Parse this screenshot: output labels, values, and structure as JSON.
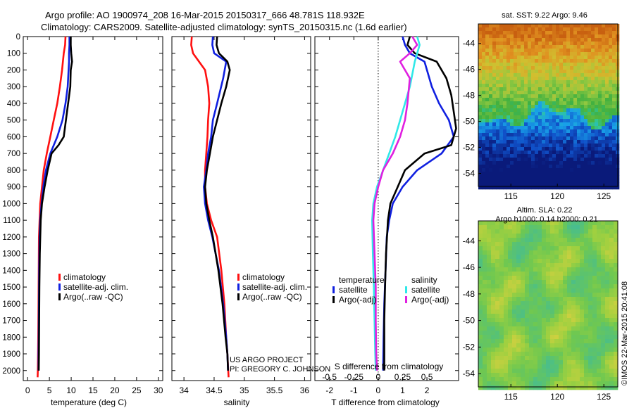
{
  "header": {
    "line1": "Argo profile: AO 1900974_208 16-Mar-2015 20150317_666 48.781S 118.932E",
    "line2": "Climatology: CARS2009. Satellite-adjusted climatology: synTS_20150315.nc (1.6d earlier)"
  },
  "colors": {
    "climatology": "#ff1010",
    "satellite_adj": "#1020e0",
    "argo": "#000000",
    "salinity_sat": "#30e8e8",
    "salinity_argo": "#e020e0"
  },
  "credits": {
    "project": "US ARGO PROJECT",
    "pi": "PI: GREGORY C. JOHNSON",
    "stamp": "©IMOS 22-Mar-2015 20:41:08"
  },
  "chart_data": [
    {
      "type": "line",
      "panel": "temperature",
      "xlabel": "temperature (deg C)",
      "ylabel": "",
      "xlim": [
        -1,
        31
      ],
      "ylim": [
        2060,
        0
      ],
      "y_reversed": true,
      "xticks": [
        0,
        5,
        10,
        15,
        20,
        25,
        30
      ],
      "yticks": [
        0,
        100,
        200,
        300,
        400,
        500,
        600,
        700,
        800,
        900,
        1000,
        1100,
        1200,
        1300,
        1400,
        1500,
        1600,
        1700,
        1800,
        1900,
        2000
      ],
      "legend": [
        "climatology",
        "satellite-adj. clim.",
        "Argo(..raw -QC)"
      ],
      "series": [
        {
          "name": "climatology",
          "color": "#ff1010",
          "x": [
            8.7,
            8.6,
            8.3,
            7.9,
            7.4,
            6.8,
            6.0,
            5.2,
            4.4,
            3.7,
            3.3,
            2.9,
            2.75,
            2.6,
            2.55,
            2.5,
            2.45,
            2.4,
            2.35,
            2.3
          ],
          "y": [
            0,
            50,
            100,
            200,
            300,
            400,
            500,
            600,
            700,
            800,
            900,
            1000,
            1100,
            1200,
            1400,
            1600,
            1800,
            1900,
            2000,
            2040
          ]
        },
        {
          "name": "satellite-adj. clim.",
          "color": "#1020e0",
          "x": [
            9.6,
            9.6,
            9.5,
            9.5,
            9.2,
            8.7,
            8.0,
            6.8,
            5.2,
            4.2,
            3.6,
            3.2,
            2.9,
            2.75,
            2.65,
            2.6,
            2.55,
            2.5,
            2.5
          ],
          "y": [
            0,
            50,
            100,
            150,
            300,
            400,
            500,
            600,
            700,
            800,
            900,
            1000,
            1100,
            1200,
            1400,
            1600,
            1800,
            1900,
            2000
          ]
        },
        {
          "name": "Argo(..raw -QC)",
          "color": "#000000",
          "x": [
            9.9,
            9.9,
            10.0,
            10.2,
            9.9,
            9.8,
            9.3,
            8.8,
            8.3,
            7.1,
            5.5,
            4.6,
            3.9,
            3.3,
            3.0,
            2.8,
            2.7,
            2.65,
            2.6,
            2.55
          ],
          "y": [
            0,
            50,
            100,
            150,
            200,
            300,
            400,
            500,
            600,
            650,
            700,
            800,
            900,
            1000,
            1100,
            1300,
            1500,
            1700,
            1900,
            2000
          ]
        }
      ]
    },
    {
      "type": "line",
      "panel": "salinity",
      "xlabel": "salinity",
      "ylabel": "",
      "xlim": [
        33.8,
        36.1
      ],
      "ylim": [
        2060,
        0
      ],
      "y_reversed": true,
      "xticks": [
        34,
        34.5,
        35,
        35.5,
        36
      ],
      "xtick_labels": [
        "34",
        "34.5",
        "35",
        "35.5",
        "36"
      ],
      "legend": [
        "climatology",
        "satellite-adj. clim.",
        "Argo(..raw -QC)"
      ],
      "series": [
        {
          "name": "climatology",
          "color": "#ff1010",
          "x": [
            34.13,
            34.12,
            34.15,
            34.35,
            34.4,
            34.42,
            34.4,
            34.39,
            34.37,
            34.35,
            34.35,
            34.38,
            34.45,
            34.55,
            34.62,
            34.67,
            34.7,
            34.72,
            34.74
          ],
          "y": [
            0,
            50,
            100,
            200,
            300,
            400,
            500,
            600,
            700,
            800,
            900,
            1000,
            1100,
            1200,
            1400,
            1600,
            1800,
            1900,
            2040
          ]
        },
        {
          "name": "satellite-adj. clim.",
          "color": "#1020e0",
          "x": [
            34.48,
            34.47,
            34.5,
            34.7,
            34.65,
            34.55,
            34.48,
            34.45,
            34.4,
            34.37,
            34.33,
            34.35,
            34.4,
            34.47,
            34.58,
            34.65,
            34.7,
            34.72,
            34.73
          ],
          "y": [
            0,
            50,
            100,
            150,
            250,
            400,
            500,
            600,
            700,
            800,
            900,
            1000,
            1100,
            1200,
            1400,
            1600,
            1800,
            1900,
            2000
          ]
        },
        {
          "name": "Argo(..raw -QC)",
          "color": "#000000",
          "x": [
            34.55,
            34.54,
            34.58,
            34.72,
            34.76,
            34.7,
            34.62,
            34.55,
            34.48,
            34.43,
            34.38,
            34.35,
            34.37,
            34.42,
            34.48,
            34.57,
            34.64,
            34.69,
            34.72,
            34.73
          ],
          "y": [
            0,
            50,
            100,
            150,
            200,
            300,
            400,
            500,
            600,
            700,
            800,
            900,
            1000,
            1100,
            1200,
            1400,
            1600,
            1800,
            1900,
            2000
          ]
        }
      ]
    },
    {
      "type": "line",
      "panel": "difference",
      "xlabel": "T difference from climatology",
      "top_xlabel": "S difference from climatology",
      "xlim": [
        -2.6,
        3.3
      ],
      "ylim": [
        2060,
        0
      ],
      "y_reversed": true,
      "xticks": [
        -2,
        -1,
        0,
        1,
        2
      ],
      "top_xticks": [
        -0.5,
        -0.25,
        0,
        0.25,
        0.5
      ],
      "top_xtick_labels": [
        "-0.5",
        "-0.25",
        "0",
        "0.25",
        "0.5"
      ],
      "top_xtick_positions": [
        -2,
        -1,
        0,
        1,
        2
      ],
      "legend_headers": [
        "temperature",
        "salinity"
      ],
      "legend": [
        "satellite",
        "Argo(-adj)",
        "satellite",
        "Argo(-adj)"
      ],
      "series": [
        {
          "name": "satellite",
          "group": "temperature",
          "color": "#1020e0",
          "x": [
            1.0,
            1.1,
            1.3,
            1.9,
            2.2,
            2.5,
            2.9,
            3.1,
            2.6,
            1.6,
            1.0,
            0.6,
            0.45,
            0.35,
            0.3,
            0.25,
            0.22,
            0.2
          ],
          "y": [
            0,
            50,
            100,
            150,
            300,
            400,
            500,
            600,
            700,
            800,
            900,
            1000,
            1100,
            1200,
            1400,
            1600,
            1800,
            2000
          ]
        },
        {
          "name": "Argo(-adj)",
          "group": "temperature",
          "color": "#000000",
          "x": [
            1.3,
            1.2,
            1.5,
            2.4,
            2.8,
            3.0,
            3.1,
            3.2,
            3.0,
            1.9,
            1.1,
            0.8,
            0.5,
            0.4,
            0.32,
            0.28,
            0.25,
            0.25
          ],
          "y": [
            0,
            50,
            100,
            150,
            250,
            350,
            450,
            550,
            650,
            700,
            800,
            900,
            1000,
            1100,
            1300,
            1500,
            1700,
            2000
          ]
        },
        {
          "name": "satellite",
          "group": "salinity",
          "color": "#30e8e8",
          "x": [
            1.6,
            1.7,
            1.6,
            1.5,
            1.3,
            1.1,
            0.9,
            0.7,
            0.45,
            0.2,
            -0.05,
            -0.2,
            -0.25,
            -0.22,
            -0.18,
            -0.15,
            -0.12,
            -0.1
          ],
          "y": [
            0,
            50,
            100,
            150,
            300,
            400,
            500,
            600,
            700,
            800,
            900,
            1000,
            1100,
            1300,
            1500,
            1700,
            1900,
            2000
          ]
        },
        {
          "name": "Argo(-adj)",
          "group": "salinity",
          "color": "#e020e0",
          "x": [
            1.4,
            1.6,
            1.3,
            0.9,
            1.3,
            1.2,
            1.1,
            0.9,
            0.6,
            0.2,
            0.0,
            -0.15,
            -0.2,
            -0.15,
            -0.1,
            -0.1,
            -0.08,
            -0.05
          ],
          "y": [
            0,
            50,
            100,
            150,
            250,
            400,
            500,
            600,
            700,
            800,
            900,
            1000,
            1100,
            1300,
            1500,
            1700,
            1900,
            2000
          ]
        }
      ]
    },
    {
      "type": "heatmap",
      "panel": "sst-map",
      "title": "sat. SST: 9.22 Argo: 9.46",
      "xticks": [
        115,
        120,
        125
      ],
      "yticks": [
        -44,
        -46,
        -48,
        -50,
        -52,
        -54
      ],
      "xlim": [
        111.5,
        126.5
      ],
      "ylim": [
        -55,
        -42.5
      ],
      "palette": [
        "#0a1a7a",
        "#1050c8",
        "#18a0e8",
        "#30c8a0",
        "#40b040",
        "#90c840",
        "#d0c030",
        "#e09020",
        "#c86010"
      ]
    },
    {
      "type": "heatmap",
      "panel": "sla-map",
      "title": "Altim. SLA: 0.22",
      "subtitle": "Argo h1000: 0.14 h2000: 0.21",
      "xticks": [
        115,
        120,
        125
      ],
      "yticks": [
        -44,
        -46,
        -48,
        -50,
        -52,
        -54
      ],
      "xlim": [
        111.5,
        126.5
      ],
      "ylim": [
        -55,
        -42.5
      ],
      "palette": [
        "#40b8a0",
        "#50c080",
        "#70c850",
        "#a0d040",
        "#d0d040",
        "#e0b030"
      ]
    }
  ]
}
